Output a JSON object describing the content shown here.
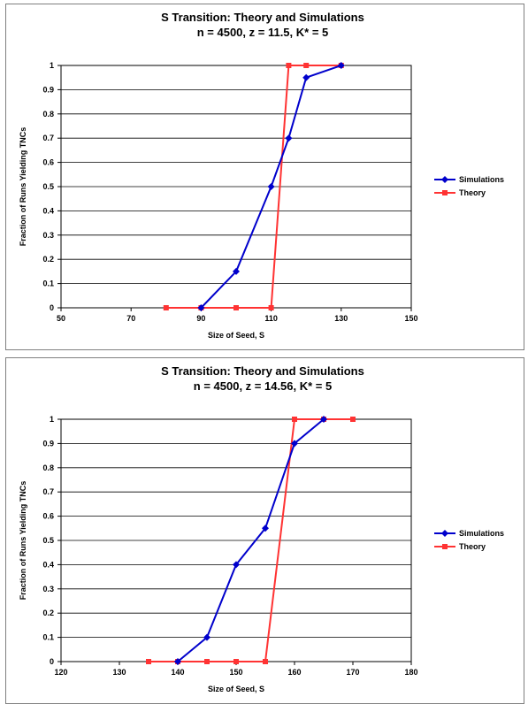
{
  "chart_data": [
    {
      "type": "line",
      "title": "S Transition: Theory and Simulations",
      "subtitle": "n = 4500, z = 11.5, K* = 5",
      "xlabel": "Size of Seed, S",
      "ylabel": "Fraction of Runs Yielding TNCs",
      "xlim": [
        50,
        150
      ],
      "xticks": [
        50,
        70,
        90,
        110,
        130,
        150
      ],
      "ylim": [
        0,
        1
      ],
      "yticks": [
        0,
        0.1,
        0.2,
        0.3,
        0.4,
        0.5,
        0.6,
        0.7,
        0.8,
        0.9,
        1
      ],
      "grid": "horizontal",
      "legend_position": "right",
      "series": [
        {
          "name": "Simulations",
          "color": "#0000cc",
          "marker": "diamond",
          "x": [
            90,
            100,
            110,
            115,
            120,
            130
          ],
          "y": [
            0,
            0.15,
            0.5,
            0.7,
            0.95,
            1
          ]
        },
        {
          "name": "Theory",
          "color": "#ff3333",
          "marker": "square",
          "x": [
            80,
            90,
            100,
            110,
            115,
            120,
            130
          ],
          "y": [
            0,
            0,
            0,
            0,
            1,
            1,
            1
          ]
        }
      ]
    },
    {
      "type": "line",
      "title": "S Transition: Theory and Simulations",
      "subtitle": "n = 4500, z = 14.56, K* = 5",
      "xlabel": "Size of Seed, S",
      "ylabel": "Fraction of Runs Yielding TNCs",
      "xlim": [
        120,
        180
      ],
      "xticks": [
        120,
        130,
        140,
        150,
        160,
        170,
        180
      ],
      "ylim": [
        0,
        1
      ],
      "yticks": [
        0,
        0.1,
        0.2,
        0.3,
        0.4,
        0.5,
        0.6,
        0.7,
        0.8,
        0.9,
        1
      ],
      "grid": "horizontal",
      "legend_position": "right",
      "series": [
        {
          "name": "Simulations",
          "color": "#0000cc",
          "marker": "diamond",
          "x": [
            140,
            145,
            150,
            155,
            160,
            165
          ],
          "y": [
            0,
            0.1,
            0.4,
            0.55,
            0.9,
            1
          ]
        },
        {
          "name": "Theory",
          "color": "#ff3333",
          "marker": "square",
          "x": [
            135,
            140,
            145,
            150,
            155,
            160,
            165,
            170
          ],
          "y": [
            0,
            0,
            0,
            0,
            0,
            1,
            1,
            1
          ]
        }
      ]
    }
  ]
}
